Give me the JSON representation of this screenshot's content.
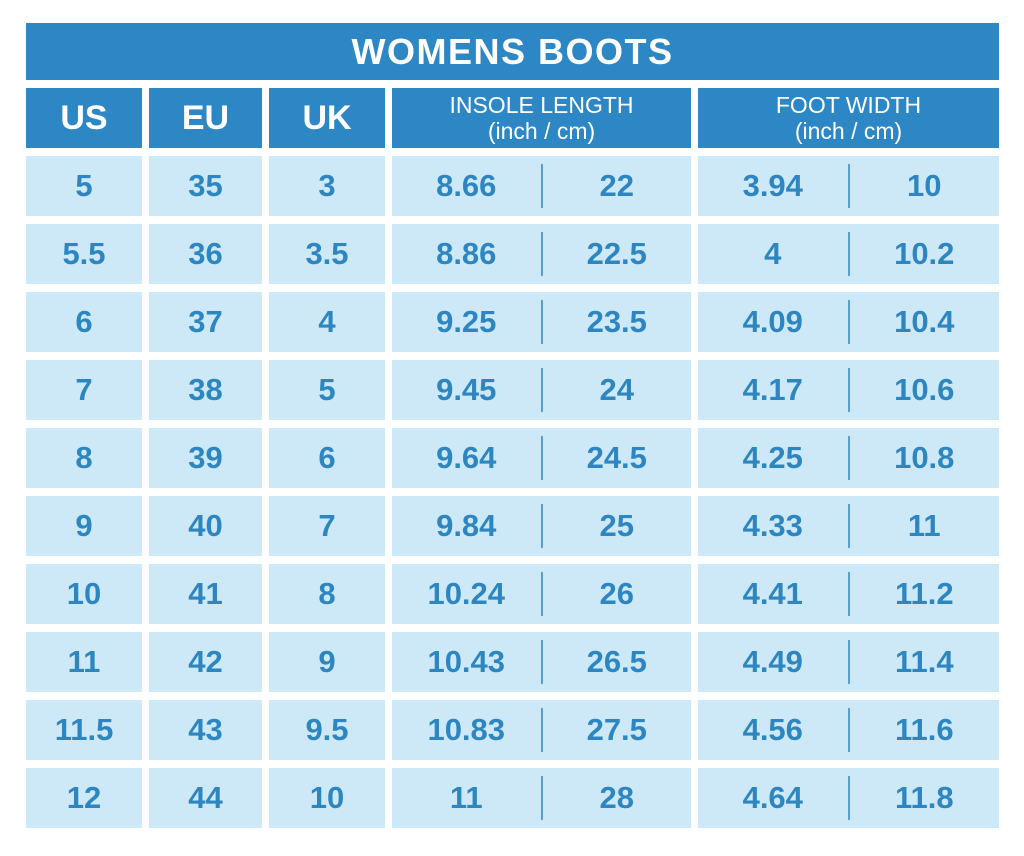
{
  "title": "WOMENS BOOTS",
  "colors": {
    "header_blue": "#2d87c4",
    "cell_blue": "#cde9f8",
    "text_blue": "#2e86c1",
    "background": "#ffffff",
    "header_text": "#ffffff"
  },
  "columns": [
    {
      "label": "US"
    },
    {
      "label": "EU"
    },
    {
      "label": "UK"
    },
    {
      "label": "INSOLE LENGTH",
      "sub": "(inch / cm)"
    },
    {
      "label": "FOOT WIDTH",
      "sub": "(inch / cm)"
    }
  ],
  "rows": [
    {
      "us": "5",
      "eu": "35",
      "uk": "3",
      "insole_in": "8.66",
      "insole_cm": "22",
      "width_in": "3.94",
      "width_cm": "10"
    },
    {
      "us": "5.5",
      "eu": "36",
      "uk": "3.5",
      "insole_in": "8.86",
      "insole_cm": "22.5",
      "width_in": "4",
      "width_cm": "10.2"
    },
    {
      "us": "6",
      "eu": "37",
      "uk": "4",
      "insole_in": "9.25",
      "insole_cm": "23.5",
      "width_in": "4.09",
      "width_cm": "10.4"
    },
    {
      "us": "7",
      "eu": "38",
      "uk": "5",
      "insole_in": "9.45",
      "insole_cm": "24",
      "width_in": "4.17",
      "width_cm": "10.6"
    },
    {
      "us": "8",
      "eu": "39",
      "uk": "6",
      "insole_in": "9.64",
      "insole_cm": "24.5",
      "width_in": "4.25",
      "width_cm": "10.8"
    },
    {
      "us": "9",
      "eu": "40",
      "uk": "7",
      "insole_in": "9.84",
      "insole_cm": "25",
      "width_in": "4.33",
      "width_cm": "11"
    },
    {
      "us": "10",
      "eu": "41",
      "uk": "8",
      "insole_in": "10.24",
      "insole_cm": "26",
      "width_in": "4.41",
      "width_cm": "11.2"
    },
    {
      "us": "11",
      "eu": "42",
      "uk": "9",
      "insole_in": "10.43",
      "insole_cm": "26.5",
      "width_in": "4.49",
      "width_cm": "11.4"
    },
    {
      "us": "11.5",
      "eu": "43",
      "uk": "9.5",
      "insole_in": "10.83",
      "insole_cm": "27.5",
      "width_in": "4.56",
      "width_cm": "11.6"
    },
    {
      "us": "12",
      "eu": "44",
      "uk": "10",
      "insole_in": "11",
      "insole_cm": "28",
      "width_in": "4.64",
      "width_cm": "11.8"
    }
  ],
  "chart_data": {
    "type": "table",
    "title": "WOMENS BOOTS",
    "columns": [
      "US",
      "EU",
      "UK",
      "INSOLE LENGTH (inch)",
      "INSOLE LENGTH (cm)",
      "FOOT WIDTH (inch)",
      "FOOT WIDTH (cm)"
    ],
    "rows": [
      [
        "5",
        "35",
        "3",
        "8.66",
        "22",
        "3.94",
        "10"
      ],
      [
        "5.5",
        "36",
        "3.5",
        "8.86",
        "22.5",
        "4",
        "10.2"
      ],
      [
        "6",
        "37",
        "4",
        "9.25",
        "23.5",
        "4.09",
        "10.4"
      ],
      [
        "7",
        "38",
        "5",
        "9.45",
        "24",
        "4.17",
        "10.6"
      ],
      [
        "8",
        "39",
        "6",
        "9.64",
        "24.5",
        "4.25",
        "10.8"
      ],
      [
        "9",
        "40",
        "7",
        "9.84",
        "25",
        "4.33",
        "11"
      ],
      [
        "10",
        "41",
        "8",
        "10.24",
        "26",
        "4.41",
        "11.2"
      ],
      [
        "11",
        "42",
        "9",
        "10.43",
        "26.5",
        "4.49",
        "11.4"
      ],
      [
        "11.5",
        "43",
        "9.5",
        "10.83",
        "27.5",
        "4.56",
        "11.6"
      ],
      [
        "12",
        "44",
        "10",
        "11",
        "28",
        "4.64",
        "11.8"
      ]
    ]
  }
}
